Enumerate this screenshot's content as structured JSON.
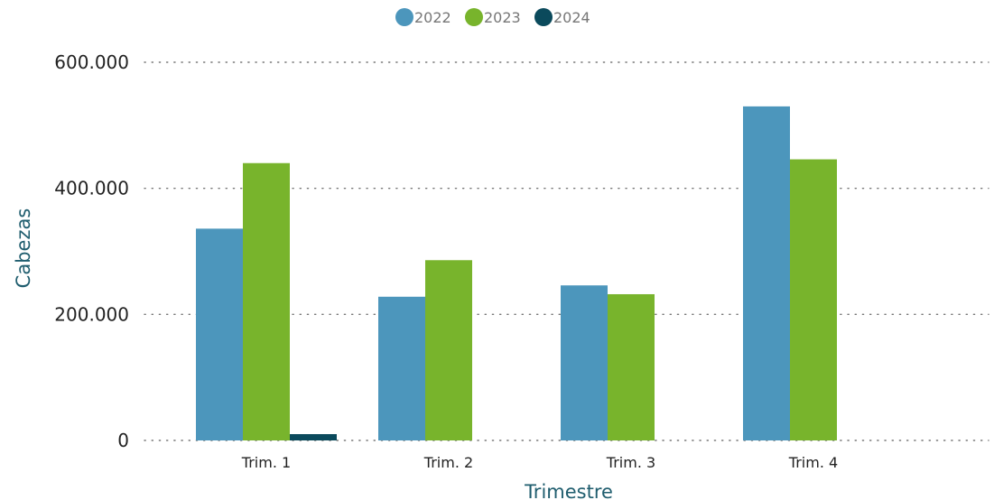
{
  "chart_data": {
    "type": "bar",
    "xlabel": "Trimestre",
    "ylabel": "Cabezas",
    "categories": [
      "Trim. 1",
      "Trim. 2",
      "Trim. 3",
      "Trim. 4"
    ],
    "series": [
      {
        "name": "2022",
        "color": "#4c96bc",
        "values": [
          336000,
          228000,
          246000,
          530000
        ]
      },
      {
        "name": "2023",
        "color": "#78b42c",
        "values": [
          440000,
          286000,
          232000,
          446000
        ]
      },
      {
        "name": "2024",
        "color": "#0b4a5c",
        "values": [
          10000,
          null,
          null,
          null
        ]
      }
    ],
    "ylim": [
      0,
      600000
    ],
    "yticks": [
      0,
      200000,
      400000,
      600000
    ],
    "ytick_labels": [
      "0",
      "200.000",
      "400.000",
      "600.000"
    ],
    "grid": "horizontal dotted",
    "legend": "top-center"
  }
}
